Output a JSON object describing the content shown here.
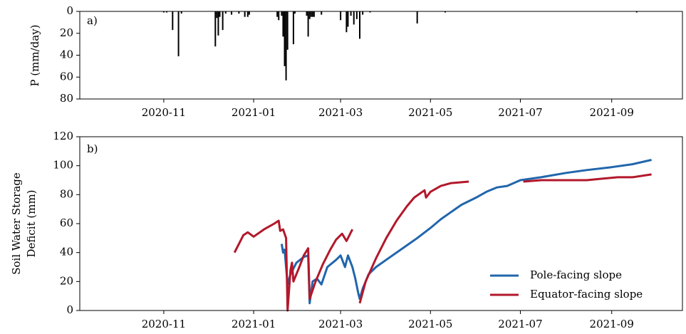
{
  "chart_data": [
    {
      "type": "bar",
      "panel_label": "a)",
      "ylabel": "P (mm/day)",
      "color": "#000000",
      "xlim": [
        "2020-09-05",
        "2021-10-19"
      ],
      "xticks": [
        "2020-11",
        "2021-01",
        "2021-03",
        "2021-05",
        "2021-07",
        "2021-09"
      ],
      "ylim": [
        80,
        0
      ],
      "yticks": [
        0,
        20,
        40,
        60,
        80
      ],
      "x": [
        "2020-11-01",
        "2020-11-03",
        "2020-11-07",
        "2020-11-11",
        "2020-11-13",
        "2020-12-06",
        "2020-12-07",
        "2020-12-08",
        "2020-12-09",
        "2020-12-11",
        "2020-12-13",
        "2020-12-17",
        "2020-12-22",
        "2020-12-26",
        "2020-12-28",
        "2020-12-29",
        "2021-01-17",
        "2021-01-18",
        "2021-01-20",
        "2021-01-21",
        "2021-01-22",
        "2021-01-23",
        "2021-01-24",
        "2021-01-28",
        "2021-01-29",
        "2021-02-06",
        "2021-02-07",
        "2021-02-08",
        "2021-02-09",
        "2021-02-10",
        "2021-02-11",
        "2021-02-16",
        "2021-03-01",
        "2021-03-05",
        "2021-03-06",
        "2021-03-08",
        "2021-03-10",
        "2021-03-12",
        "2021-03-14",
        "2021-03-16",
        "2021-03-21",
        "2021-04-22",
        "2021-05-11",
        "2021-09-18"
      ],
      "values": [
        1,
        1,
        17,
        41,
        2,
        32,
        6,
        22,
        5,
        17,
        2,
        3,
        2,
        5,
        5,
        3,
        5,
        8,
        4,
        23,
        50,
        63,
        35,
        30,
        2,
        4,
        23,
        7,
        5,
        5,
        5,
        3,
        8,
        19,
        14,
        4,
        12,
        7,
        25,
        3,
        1,
        11,
        1,
        1
      ]
    },
    {
      "type": "line",
      "panel_label": "b)",
      "ylabel": [
        "Soil Water Storage",
        "Deficit (mm)"
      ],
      "xlim": [
        "2020-09-05",
        "2021-10-19"
      ],
      "xticks": [
        "2020-11",
        "2021-01",
        "2021-03",
        "2021-05",
        "2021-07",
        "2021-09"
      ],
      "ylim": [
        0,
        120
      ],
      "yticks": [
        0,
        20,
        40,
        60,
        80,
        100,
        120
      ],
      "legend": "lower right",
      "series": [
        {
          "name": "Pole-facing slope",
          "color": "#2166ac",
          "x": [
            "2021-01-20",
            "2021-01-21",
            "2021-01-22",
            "2021-01-24",
            "2021-01-26",
            "2021-01-30",
            "2021-02-04",
            "2021-02-07",
            "2021-02-08",
            "2021-02-10",
            "2021-02-13",
            "2021-02-16",
            "2021-02-20",
            "2021-02-26",
            "2021-03-01",
            "2021-03-04",
            "2021-03-06",
            "2021-03-09",
            "2021-03-11",
            "2021-03-13",
            "2021-03-14",
            "2021-03-16",
            "2021-03-20",
            "2021-03-25",
            "2021-04-01",
            "2021-04-15",
            "2021-04-22",
            "2021-05-01",
            "2021-05-08",
            "2021-05-15",
            "2021-05-22",
            "2021-06-01",
            "2021-06-08",
            "2021-06-15",
            "2021-06-22",
            "2021-07-01",
            "2021-07-15",
            "2021-08-01",
            "2021-08-15",
            "2021-09-01",
            "2021-09-15",
            "2021-09-28"
          ],
          "values": [
            46,
            40,
            42,
            18,
            25,
            33,
            37,
            38,
            5,
            20,
            22,
            18,
            30,
            35,
            38,
            30,
            38,
            30,
            22,
            12,
            8,
            15,
            25,
            30,
            35,
            45,
            50,
            57,
            63,
            68,
            73,
            78,
            82,
            85,
            86,
            90,
            92,
            95,
            97,
            99,
            101,
            104
          ]
        },
        {
          "name": "Equator-facing slope",
          "color": "#b2182b",
          "x": [
            "2020-12-19",
            "2020-12-25",
            "2020-12-28",
            "2021-01-01",
            "2021-01-08",
            "2021-01-15",
            "2021-01-18",
            "2021-01-19",
            "2021-01-21",
            "2021-01-23",
            "2021-01-24",
            "2021-01-26",
            "2021-01-27",
            "2021-01-28",
            "2021-02-01",
            "2021-02-04",
            "2021-02-07",
            "2021-02-08",
            "2021-02-12",
            "2021-02-17",
            "2021-02-22",
            "2021-02-26",
            "2021-03-02",
            "2021-03-05",
            "2021-03-09",
            "2021-03-11",
            "2021-03-14",
            "2021-03-18",
            "2021-03-25",
            "2021-04-01",
            "2021-04-08",
            "2021-04-15",
            "2021-04-20",
            "2021-04-27",
            "2021-04-28",
            "2021-05-01",
            "2021-05-08",
            "2021-05-15",
            "2021-05-27",
            "2021-06-15",
            "2021-07-03",
            "2021-07-15",
            "2021-08-01",
            "2021-08-15",
            "2021-08-25",
            "2021-09-05",
            "2021-09-15",
            "2021-09-28"
          ],
          "values": [
            40,
            52,
            54,
            51,
            56,
            60,
            62,
            55,
            56,
            50,
            0,
            28,
            33,
            20,
            30,
            38,
            43,
            8,
            20,
            32,
            42,
            49,
            53,
            48,
            56,
            null,
            5,
            20,
            36,
            50,
            62,
            72,
            78,
            83,
            78,
            82,
            86,
            88,
            89,
            null,
            89,
            90,
            90,
            90,
            91,
            92,
            92,
            94
          ]
        }
      ]
    }
  ]
}
